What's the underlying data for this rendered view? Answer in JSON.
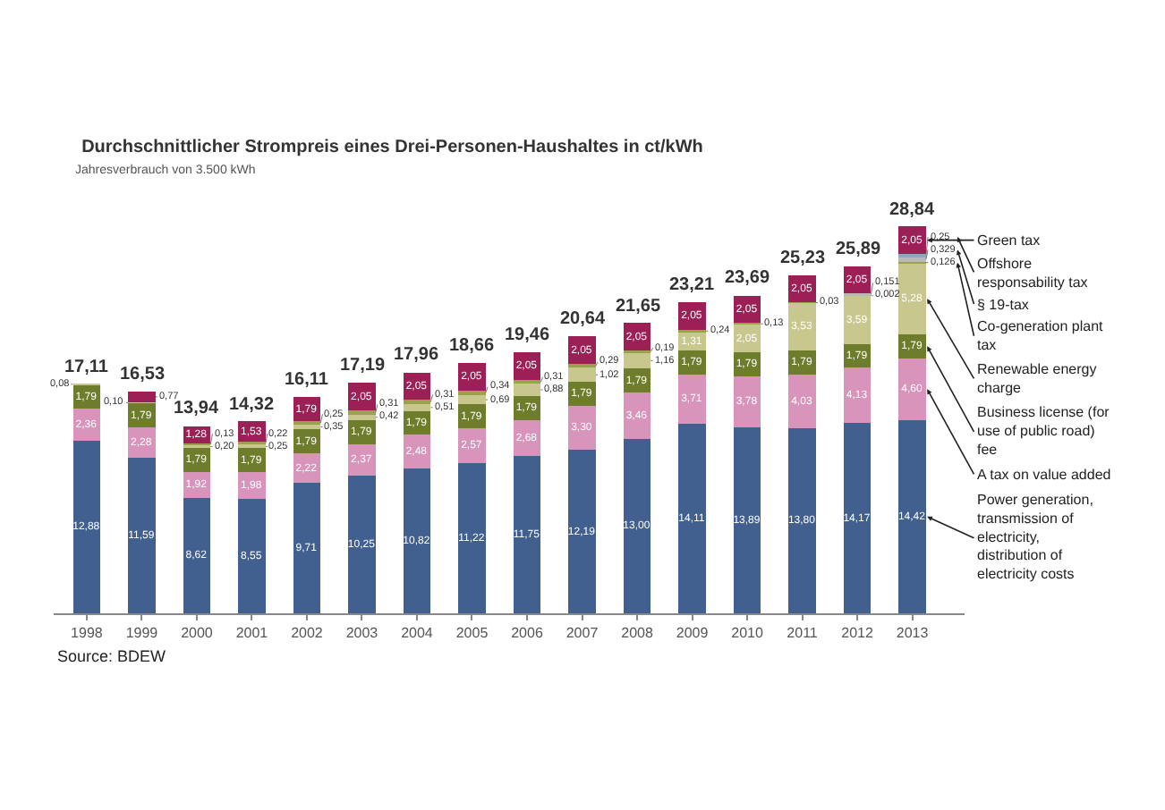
{
  "chart_data": {
    "type": "bar",
    "stacked": true,
    "title": "Durchschnittlicher Strompreis eines Drei-Personen-Haushaltes in ct/kWh",
    "subtitle": "Jahresverbrauch von 3.500 kWh",
    "categories": [
      "1998",
      "1999",
      "2000",
      "2001",
      "2002",
      "2003",
      "2004",
      "2005",
      "2006",
      "2007",
      "2008",
      "2009",
      "2010",
      "2011",
      "2012",
      "2013"
    ],
    "series": [
      {
        "name": "Power generation, transmission of electricity, distribution of electricity costs",
        "color": "#41608f",
        "values": [
          12.88,
          11.59,
          8.62,
          8.55,
          9.71,
          10.25,
          10.82,
          11.22,
          11.75,
          12.19,
          13.0,
          14.11,
          13.89,
          13.8,
          14.17,
          14.42
        ],
        "value_labels": [
          "12,88",
          "11,59",
          "8,62",
          "8,55",
          "9,71",
          "10,25",
          "10,82",
          "11,22",
          "11,75",
          "12,19",
          "13,00",
          "14,11",
          "13,89",
          "13,80",
          "14,17",
          "14,42"
        ]
      },
      {
        "name": "A tax on value added",
        "color": "#d894bb",
        "values": [
          2.36,
          2.28,
          1.92,
          1.98,
          2.22,
          2.37,
          2.48,
          2.57,
          2.68,
          3.3,
          3.46,
          3.71,
          3.78,
          4.03,
          4.13,
          4.6
        ],
        "value_labels": [
          "2,36",
          "2,28",
          "1,92",
          "1,98",
          "2,22",
          "2,37",
          "2,48",
          "2,57",
          "2,68",
          "3,30",
          "3,46",
          "3,71",
          "3,78",
          "4,03",
          "4,13",
          "4,60"
        ]
      },
      {
        "name": "Business license (for use of public road) fee",
        "color": "#6e7d2b",
        "values": [
          1.79,
          1.79,
          1.79,
          1.79,
          1.79,
          1.79,
          1.79,
          1.79,
          1.79,
          1.79,
          1.79,
          1.79,
          1.79,
          1.79,
          1.79,
          1.79
        ],
        "value_labels": [
          "1,79",
          "1,79",
          "1,79",
          "1,79",
          "1,79",
          "1,79",
          "1,79",
          "1,79",
          "1,79",
          "1,79",
          "1,79",
          "1,79",
          "1,79",
          "1,79",
          "1,79",
          "1,79"
        ]
      },
      {
        "name": "Renewable energy charge",
        "color": "#c8c88e",
        "values": [
          0.08,
          0.1,
          0.2,
          0.25,
          0.35,
          0.42,
          0.51,
          0.69,
          0.88,
          1.02,
          1.16,
          1.31,
          2.05,
          3.53,
          3.59,
          5.28
        ],
        "value_labels": [
          "0,08",
          "0,10",
          "0,20",
          "0,25",
          "0,35",
          "0,42",
          "0,51",
          "0,69",
          "0,88",
          "1,02",
          "1,16",
          "1,31",
          "2,05",
          "3,53",
          "3,59",
          "5,28"
        ]
      },
      {
        "name": "Co-generation plant tax",
        "color": "#9ba24e",
        "values": [
          null,
          null,
          0.13,
          0.22,
          0.25,
          0.31,
          0.31,
          0.34,
          0.31,
          0.29,
          0.19,
          0.24,
          0.13,
          0.03,
          0.002,
          0.126
        ],
        "value_labels": [
          null,
          null,
          "0,13",
          "0,22",
          "0,25",
          "0,31",
          "0,31",
          "0,34",
          "0,31",
          "0,29",
          "0,19",
          "0,24",
          "0,13",
          "0,03",
          "0,002",
          "0,126"
        ]
      },
      {
        "name": "§ 19-tax",
        "color": "#b9b9b9",
        "values": [
          null,
          null,
          null,
          null,
          null,
          null,
          null,
          null,
          null,
          null,
          null,
          null,
          null,
          null,
          0.151,
          0.329
        ],
        "value_labels": [
          null,
          null,
          null,
          null,
          null,
          null,
          null,
          null,
          null,
          null,
          null,
          null,
          null,
          null,
          "0,151",
          "0,329"
        ]
      },
      {
        "name": "Offshore responsability tax",
        "color": "#8fa6bf",
        "values": [
          null,
          null,
          null,
          null,
          null,
          null,
          null,
          null,
          null,
          null,
          null,
          null,
          null,
          null,
          null,
          0.25
        ],
        "value_labels": [
          null,
          null,
          null,
          null,
          null,
          null,
          null,
          null,
          null,
          null,
          null,
          null,
          null,
          null,
          null,
          "0,25"
        ]
      },
      {
        "name": "Green tax",
        "color": "#9c1f55",
        "values": [
          null,
          0.77,
          1.28,
          1.53,
          1.79,
          2.05,
          2.05,
          2.05,
          2.05,
          2.05,
          2.05,
          2.05,
          2.05,
          2.05,
          2.05,
          2.05
        ],
        "value_labels": [
          null,
          "0,77",
          "1,28",
          "1,53",
          "1,79",
          "2,05",
          "2,05",
          "2,05",
          "2,05",
          "2,05",
          "2,05",
          "2,05",
          "2,05",
          "2,05",
          "2,05",
          "2,05"
        ]
      }
    ],
    "totals": [
      "17,11",
      "16,53",
      "13,94",
      "14,32",
      "16,11",
      "17,19",
      "17,96",
      "18,66",
      "19,46",
      "20,64",
      "21,65",
      "23,21",
      "23,69",
      "25,23",
      "25,89",
      "28,84"
    ],
    "grid": false,
    "legend": false,
    "annotations": [
      "Source: BDEW"
    ]
  }
}
